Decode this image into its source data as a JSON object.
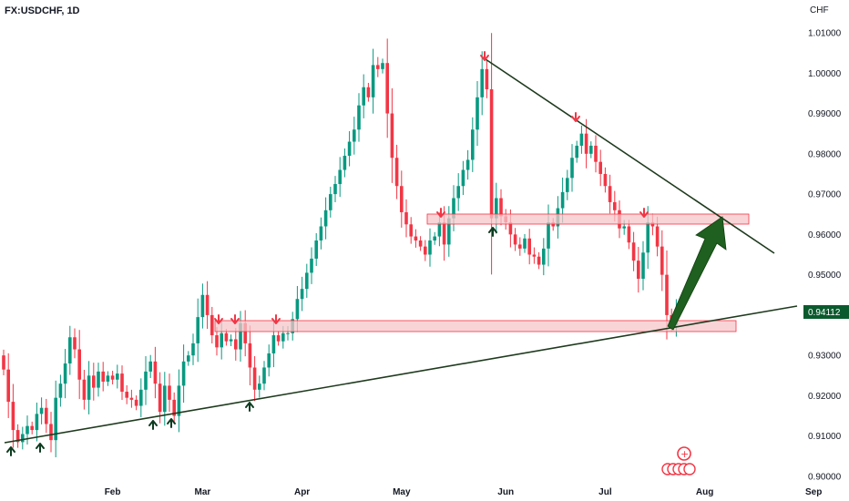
{
  "header": {
    "symbol": "FX:USDCHF, 1D",
    "currency": "CHF"
  },
  "colors": {
    "up": "#089981",
    "down": "#f23645",
    "trendline": "#1e3a1e",
    "zone_fill": "#f6c5c9",
    "zone_stroke": "#f23645",
    "arrow_up": "#0d3b20",
    "arrow_down": "#f23645",
    "projection": "#1f5f1f",
    "price_tag": "#0b5a2e"
  },
  "chart_data": {
    "type": "candlestick",
    "symbol": "FX:USDCHF",
    "timeframe": "1D",
    "ylim": [
      0.9,
      1.014
    ],
    "x_axis_labels": [
      "Feb",
      "Mar",
      "Apr",
      "May",
      "Jun",
      "Jul",
      "Aug",
      "Sep"
    ],
    "x_axis_positions": [
      23,
      42,
      63,
      84,
      106,
      127,
      148,
      171
    ],
    "y_axis_labels": [
      "1.01000",
      "1.00000",
      "0.99000",
      "0.98000",
      "0.97000",
      "0.96000",
      "0.95000",
      "0.94000",
      "0.93000",
      "0.92000",
      "0.91000",
      "0.90000"
    ],
    "y_axis_values": [
      1.01,
      1.0,
      0.99,
      0.98,
      0.97,
      0.96,
      0.95,
      0.94,
      0.93,
      0.92,
      0.91,
      0.9
    ],
    "last_price": "0.94112",
    "last_price_value": 0.9411,
    "closes": [
      0.9265,
      0.9185,
      0.9115,
      0.9085,
      0.9105,
      0.9125,
      0.9115,
      0.9155,
      0.917,
      0.913,
      0.909,
      0.9195,
      0.923,
      0.928,
      0.9345,
      0.9315,
      0.924,
      0.919,
      0.925,
      0.922,
      0.926,
      0.9235,
      0.925,
      0.924,
      0.9255,
      0.921,
      0.9195,
      0.919,
      0.9175,
      0.9215,
      0.926,
      0.9285,
      0.923,
      0.916,
      0.9225,
      0.919,
      0.915,
      0.9225,
      0.9285,
      0.93,
      0.933,
      0.9395,
      0.945,
      0.94,
      0.935,
      0.932,
      0.9355,
      0.9335,
      0.934,
      0.9315,
      0.938,
      0.933,
      0.927,
      0.9215,
      0.923,
      0.927,
      0.9305,
      0.935,
      0.9335,
      0.9355,
      0.9355,
      0.939,
      0.944,
      0.9465,
      0.9505,
      0.954,
      0.9585,
      0.962,
      0.966,
      0.97,
      0.9725,
      0.976,
      0.9795,
      0.983,
      0.986,
      0.992,
      0.9965,
      0.994,
      1.002,
      1.001,
      1.0025,
      0.99,
      0.979,
      0.972,
      0.9655,
      0.9625,
      0.9595,
      0.9585,
      0.957,
      0.955,
      0.9585,
      0.9595,
      0.963,
      0.9575,
      0.964,
      0.969,
      0.972,
      0.976,
      0.9785,
      0.986,
      0.994,
      1.001,
      0.996,
      0.964,
      0.969,
      0.9645,
      0.963,
      0.96,
      0.9575,
      0.9565,
      0.959,
      0.955,
      0.9545,
      0.9525,
      0.9565,
      0.963,
      0.962,
      0.9665,
      0.9705,
      0.974,
      0.979,
      0.982,
      0.985,
      0.98,
      0.982,
      0.978,
      0.975,
      0.972,
      0.968,
      0.966,
      0.9615,
      0.962,
      0.958,
      0.9535,
      0.949,
      0.9555,
      0.963,
      0.962,
      0.957,
      0.95,
      0.94,
      0.9375,
      0.9411
    ]
  }
}
